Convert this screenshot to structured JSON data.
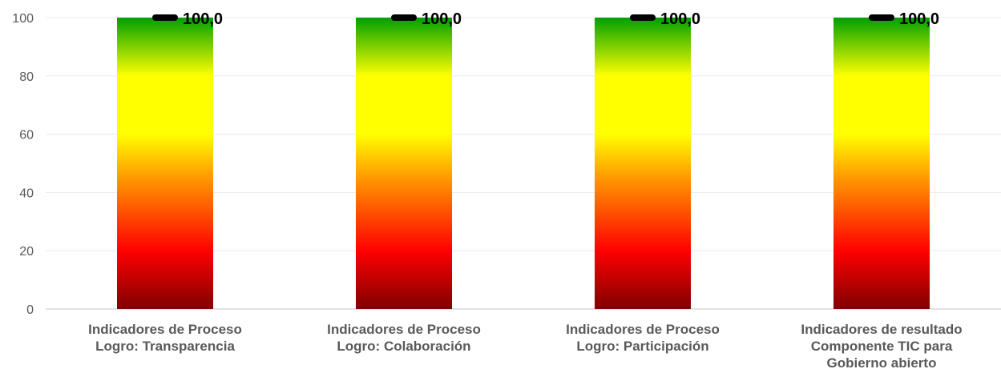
{
  "chart_data": {
    "type": "bar",
    "categories": [
      [
        "Indicadores de Proceso",
        "Logro: Transparencia"
      ],
      [
        "Indicadores de Proceso",
        "Logro: Colaboración"
      ],
      [
        "Indicadores de Proceso",
        "Logro: Participación"
      ],
      [
        "Indicadores de resultado",
        "Componente TIC para",
        "Gobierno abierto"
      ]
    ],
    "values": [
      100,
      100,
      100,
      100
    ],
    "data_labels": [
      "100,0",
      "100,0",
      "100,0",
      "100,0"
    ],
    "y_ticks": [
      0,
      20,
      40,
      60,
      80,
      100
    ],
    "ylim": [
      0,
      100
    ],
    "grid": true,
    "legend": "none",
    "title": "",
    "xlabel": "",
    "ylabel": "",
    "colors": {
      "gradient_top": "#00a000",
      "gradient_upper": "#ffff00",
      "gradient_middle": "#ff9900",
      "gradient_lower": "#ff0000",
      "gradient_bottom": "#800000",
      "marker": "#000000",
      "gridline": "#ebebeb",
      "axis": "#d9d9d9"
    }
  }
}
